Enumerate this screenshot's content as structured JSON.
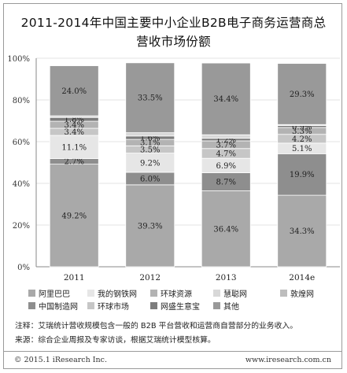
{
  "chart_data": {
    "type": "bar",
    "stacked": true,
    "title_line1": "2011-2014年中国主要中小企业B2B电子商务运营商总",
    "title_line2": "营收市场份额",
    "categories": [
      "2011",
      "2012",
      "2013",
      "2014e"
    ],
    "yticks": [
      "0%",
      "20%",
      "40%",
      "60%",
      "80%",
      "100%"
    ],
    "ylim": [
      0,
      100
    ],
    "legend_placement": "bottom",
    "series": [
      {
        "name": "阿里巴巴",
        "color": "#a9a9a9",
        "values": [
          49.2,
          39.3,
          36.4,
          34.3
        ],
        "labels": [
          "49.2%",
          "39.3%",
          "36.4%",
          "34.3%"
        ]
      },
      {
        "name": "中国制造网",
        "color": "#8e8e8e",
        "values": [
          2.7,
          6.0,
          8.7,
          19.9
        ],
        "labels": [
          "2.7%",
          "6.0%",
          "8.7%",
          "19.9%"
        ]
      },
      {
        "name": "我的钢铁网",
        "color": "#e6e6e6",
        "values": [
          11.1,
          9.2,
          6.9,
          5.1
        ],
        "labels": [
          "11.1%",
          "9.2%",
          "6.9%",
          "5.1%"
        ]
      },
      {
        "name": "环球市场",
        "color": "#c6c6c6",
        "values": [
          3.4,
          3.5,
          4.7,
          4.2
        ],
        "labels": [
          "3.4%",
          "3.5%",
          "4.7%",
          "4.2%"
        ]
      },
      {
        "name": "环球资源",
        "color": "#b3b3b3",
        "values": [
          3.4,
          3.1,
          3.7,
          3.3
        ],
        "labels": [
          "3.4%",
          "3.1%",
          "3.7%",
          "3.3%"
        ]
      },
      {
        "name": "网盛生意宝",
        "color": "#7d7d7d",
        "values": [
          1.8,
          1.6,
          1.2,
          0.9
        ],
        "labels": [
          "1.8%",
          "1.6%",
          "1.2%",
          "0.9%"
        ]
      },
      {
        "name": "慧聪网",
        "color": "#d8d8d8",
        "values": [
          0.8,
          1.6,
          1.7,
          0.5
        ],
        "labels": [
          "",
          "",
          "",
          ""
        ]
      },
      {
        "name": "其他",
        "color": "#999999",
        "values": [
          24.0,
          33.5,
          34.4,
          29.3
        ],
        "labels": [
          "24.0%",
          "33.5%",
          "34.4%",
          "29.3%"
        ]
      },
      {
        "name": "敦煌网",
        "color": "#bdbdbd",
        "values": [
          0,
          0,
          0,
          0
        ],
        "labels": [
          "",
          "",
          "",
          ""
        ]
      }
    ]
  },
  "notes": {
    "note": "注释：艾瑞统计营收规模包含一般的 B2B 平台营收和运营商自营部分的业务收入。",
    "source": "来源：综合企业周报及专家访谈，根据艾瑞统计模型核算。"
  },
  "footer": {
    "left": "© 2015.1 iResearch Inc.",
    "right": "www.iresearch.com.cn"
  }
}
